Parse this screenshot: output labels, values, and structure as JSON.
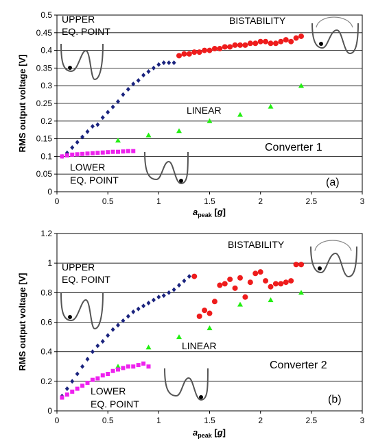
{
  "chart_data": [
    {
      "type": "scatter",
      "panel_label": "(a)",
      "converter_label": "Converter 1",
      "xlabel": "a_peak [g]",
      "xlabel_main": "a",
      "xlabel_sub": "peak",
      "xlabel_unit_open": " [",
      "xlabel_unit": "g",
      "xlabel_unit_close": "]",
      "ylabel": "RMS output voltage [V]",
      "xlim": [
        0,
        3
      ],
      "ylim": [
        0,
        0.5
      ],
      "xticks": [
        "0",
        "0.5",
        "1",
        "1.5",
        "2",
        "2.5",
        "3"
      ],
      "yticks": [
        "0",
        "0.05",
        "0.1",
        "0.15",
        "0.2",
        "0.25",
        "0.3",
        "0.35",
        "0.4",
        "0.45",
        "0.5"
      ],
      "grid": "horizontal",
      "annotations": {
        "upper_line1": "UPPER",
        "upper_line2": "EQ. POINT",
        "bistability": "BISTABILITY",
        "linear": "LINEAR",
        "lower_line1": "LOWER",
        "lower_line2": "EQ. POINT"
      },
      "series": [
        {
          "marker": "diamond",
          "color": "#1a237e",
          "x": [
            0.05,
            0.1,
            0.15,
            0.2,
            0.25,
            0.3,
            0.35,
            0.4,
            0.45,
            0.5,
            0.55,
            0.6,
            0.65,
            0.7,
            0.75,
            0.8,
            0.85,
            0.9,
            0.95,
            1.0,
            1.05,
            1.1,
            1.15
          ],
          "y": [
            0.1,
            0.11,
            0.125,
            0.14,
            0.155,
            0.17,
            0.185,
            0.19,
            0.21,
            0.225,
            0.24,
            0.255,
            0.275,
            0.29,
            0.305,
            0.315,
            0.33,
            0.34,
            0.35,
            0.36,
            0.365,
            0.365,
            0.365
          ]
        },
        {
          "marker": "circle",
          "color": "#ee1c1c",
          "x": [
            1.2,
            1.25,
            1.3,
            1.35,
            1.4,
            1.45,
            1.5,
            1.55,
            1.6,
            1.65,
            1.7,
            1.75,
            1.8,
            1.85,
            1.9,
            1.95,
            2.0,
            2.05,
            2.1,
            2.15,
            2.2,
            2.25,
            2.3,
            2.35,
            2.4
          ],
          "y": [
            0.385,
            0.39,
            0.39,
            0.395,
            0.395,
            0.4,
            0.4,
            0.405,
            0.405,
            0.41,
            0.41,
            0.415,
            0.415,
            0.415,
            0.42,
            0.42,
            0.425,
            0.425,
            0.42,
            0.42,
            0.425,
            0.43,
            0.425,
            0.435,
            0.44
          ]
        },
        {
          "marker": "triangle",
          "color": "#22ee11",
          "x": [
            0.6,
            0.9,
            1.2,
            1.5,
            1.8,
            2.1,
            2.4
          ],
          "y": [
            0.145,
            0.16,
            0.172,
            0.2,
            0.218,
            0.241,
            0.3
          ]
        },
        {
          "marker": "square",
          "color": "#ee22ee",
          "x": [
            0.05,
            0.1,
            0.15,
            0.2,
            0.25,
            0.3,
            0.35,
            0.4,
            0.45,
            0.5,
            0.55,
            0.6,
            0.65,
            0.7,
            0.75
          ],
          "y": [
            0.1,
            0.103,
            0.105,
            0.106,
            0.107,
            0.108,
            0.109,
            0.11,
            0.111,
            0.112,
            0.113,
            0.113,
            0.114,
            0.115,
            0.115
          ]
        }
      ]
    },
    {
      "type": "scatter",
      "panel_label": "(b)",
      "converter_label": "Converter 2",
      "xlabel": "a_peak [g]",
      "xlabel_main": "a",
      "xlabel_sub": "peak",
      "xlabel_unit_open": " [",
      "xlabel_unit": "g",
      "xlabel_unit_close": "]",
      "ylabel": "RMS output voltage [V]",
      "xlim": [
        0,
        3
      ],
      "ylim": [
        0,
        1.2
      ],
      "xticks": [
        "0",
        "0.5",
        "1",
        "1.5",
        "2",
        "2.5",
        "3"
      ],
      "yticks": [
        "0",
        "0.2",
        "0.4",
        "0.6",
        "0.8",
        "1",
        "1.2"
      ],
      "grid": "horizontal",
      "annotations": {
        "upper_line1": "UPPER",
        "upper_line2": "EQ. POINT",
        "bistability": "BISTABILITY",
        "linear": "LINEAR",
        "lower_line1": "LOWER",
        "lower_line2": "EQ. POINT"
      },
      "series": [
        {
          "marker": "diamond",
          "color": "#1a237e",
          "x": [
            0.05,
            0.1,
            0.15,
            0.2,
            0.25,
            0.3,
            0.35,
            0.4,
            0.45,
            0.5,
            0.55,
            0.6,
            0.65,
            0.7,
            0.75,
            0.8,
            0.85,
            0.9,
            0.95,
            1.0,
            1.05,
            1.1,
            1.15,
            1.2,
            1.25,
            1.3
          ],
          "y": [
            0.1,
            0.15,
            0.2,
            0.25,
            0.3,
            0.35,
            0.4,
            0.44,
            0.47,
            0.51,
            0.55,
            0.58,
            0.61,
            0.64,
            0.67,
            0.69,
            0.71,
            0.73,
            0.75,
            0.77,
            0.78,
            0.8,
            0.82,
            0.85,
            0.88,
            0.91
          ]
        },
        {
          "marker": "circle",
          "color": "#ee1c1c",
          "x": [
            1.35,
            1.4,
            1.45,
            1.5,
            1.55,
            1.6,
            1.65,
            1.7,
            1.75,
            1.8,
            1.85,
            1.9,
            1.95,
            2.0,
            2.05,
            2.1,
            2.15,
            2.2,
            2.25,
            2.3,
            2.35,
            2.4
          ],
          "y": [
            0.91,
            0.64,
            0.68,
            0.66,
            0.74,
            0.85,
            0.86,
            0.89,
            0.83,
            0.9,
            0.77,
            0.87,
            0.93,
            0.94,
            0.88,
            0.84,
            0.86,
            0.86,
            0.87,
            0.88,
            0.99,
            0.99
          ]
        },
        {
          "marker": "triangle",
          "color": "#22ee11",
          "x": [
            0.6,
            0.9,
            1.2,
            1.5,
            1.8,
            2.1,
            2.4
          ],
          "y": [
            0.3,
            0.43,
            0.5,
            0.56,
            0.72,
            0.75,
            0.8
          ]
        },
        {
          "marker": "square",
          "color": "#ee22ee",
          "x": [
            0.05,
            0.1,
            0.15,
            0.2,
            0.25,
            0.3,
            0.35,
            0.4,
            0.45,
            0.5,
            0.55,
            0.6,
            0.65,
            0.7,
            0.75,
            0.8,
            0.85,
            0.9
          ],
          "y": [
            0.09,
            0.11,
            0.13,
            0.15,
            0.17,
            0.19,
            0.21,
            0.22,
            0.24,
            0.25,
            0.27,
            0.28,
            0.29,
            0.3,
            0.3,
            0.31,
            0.32,
            0.3
          ]
        }
      ]
    }
  ]
}
